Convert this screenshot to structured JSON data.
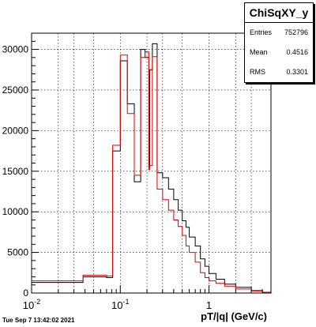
{
  "chart_data": {
    "type": "line",
    "title": "ChiSqXY_y",
    "xlabel": "pT/|q| (GeV/c)",
    "ylabel": "",
    "xscale": "log",
    "xlim": [
      0.01,
      5
    ],
    "ylim": [
      0,
      32000
    ],
    "grid": true,
    "x_tick_labels": [
      "10^-2",
      "10^-1",
      "1"
    ],
    "y_ticks": [
      0,
      5000,
      10000,
      15000,
      20000,
      25000,
      30000
    ],
    "stats": {
      "entries": "752796",
      "mean": "0.4516",
      "rms": "0.3301"
    },
    "series": [
      {
        "color": "#000000",
        "x": [
          0.01,
          0.038,
          0.07,
          0.082,
          0.1,
          0.12,
          0.144,
          0.17,
          0.19,
          0.21,
          0.215,
          0.23,
          0.26,
          0.3,
          0.35,
          0.4,
          0.45,
          0.5,
          0.55,
          0.6,
          0.7,
          0.8,
          0.9,
          1.0,
          1.2,
          1.5,
          2.0,
          3.0,
          4.0,
          5.0
        ],
        "y": [
          1300,
          2000,
          1900,
          17500,
          28600,
          23300,
          13700,
          30000,
          29000,
          15500,
          27500,
          30700,
          14800,
          14200,
          12800,
          11500,
          10200,
          8900,
          8100,
          6900,
          5800,
          4200,
          3300,
          2400,
          1700,
          1100,
          700,
          300,
          100,
          0
        ]
      },
      {
        "color": "#dd0000",
        "x": [
          0.01,
          0.038,
          0.07,
          0.082,
          0.1,
          0.12,
          0.144,
          0.17,
          0.19,
          0.21,
          0.215,
          0.23,
          0.26,
          0.3,
          0.35,
          0.4,
          0.45,
          0.5,
          0.55,
          0.6,
          0.7,
          0.8,
          0.9,
          1.0,
          1.2,
          1.5,
          2.0,
          3.0,
          4.0,
          5.0
        ],
        "y": [
          1500,
          2200,
          2100,
          18200,
          29300,
          22100,
          14500,
          29000,
          29700,
          15200,
          15700,
          29100,
          12800,
          11500,
          10200,
          9000,
          8200,
          7100,
          5800,
          5000,
          3800,
          2500,
          1900,
          1500,
          1200,
          850,
          500,
          250,
          100,
          0
        ]
      }
    ]
  }
}
